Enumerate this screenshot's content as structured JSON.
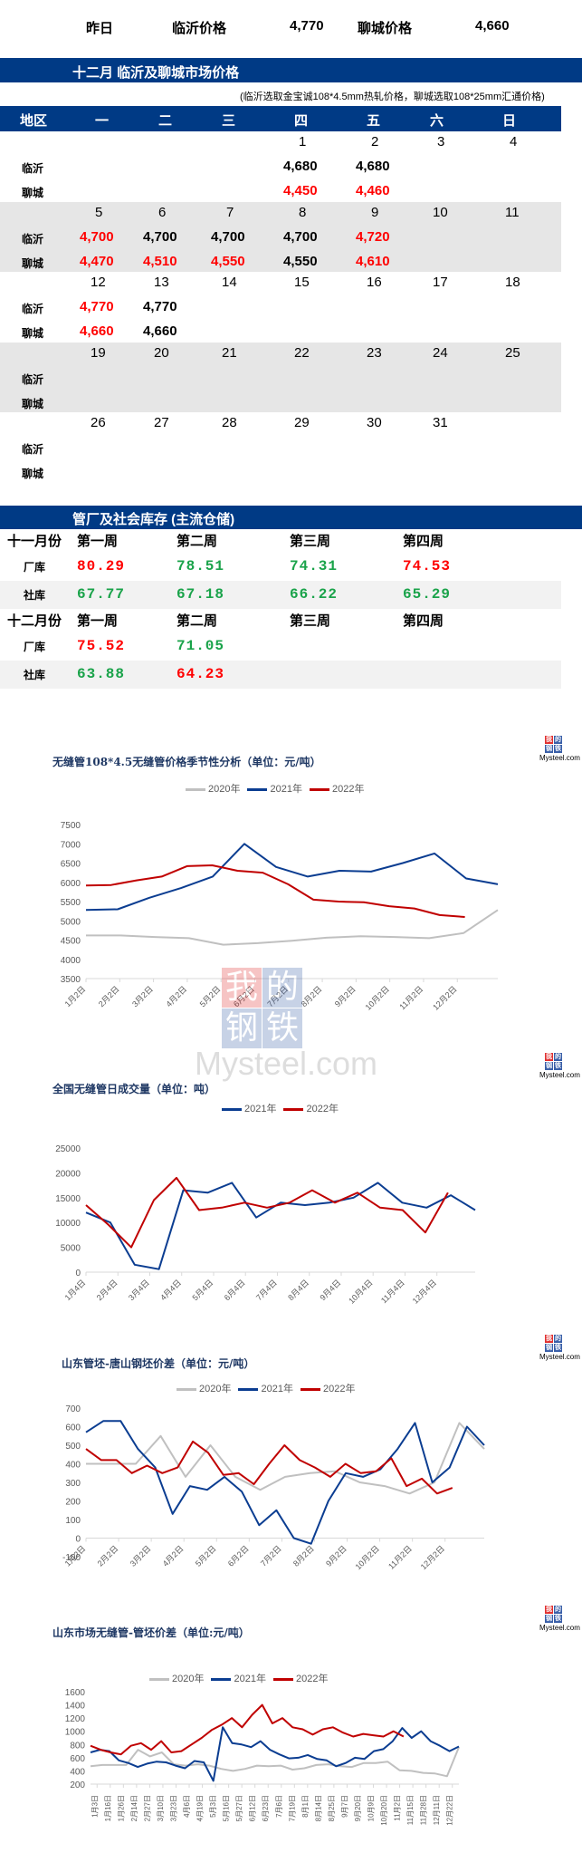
{
  "yesterday": {
    "label": "昨日",
    "linyi_label": "临沂价格",
    "linyi_value": "4,770",
    "liaocheng_label": "聊城价格",
    "liaocheng_value": "4,660"
  },
  "calendar": {
    "title": "十二月  临沂及聊城市场价格",
    "note": "(临沂选取金宝诚108*4.5mm热轧价格，聊城选取108*25mm汇通价格)",
    "headers": [
      "地区",
      "一",
      "二",
      "三",
      "四",
      "五",
      "六",
      "日"
    ],
    "row_labels": {
      "linyi": "临沂",
      "liaocheng": "聊城"
    },
    "weeks": [
      {
        "days": [
          "",
          "",
          "",
          "1",
          "2",
          "3",
          "4"
        ],
        "linyi": [
          null,
          null,
          null,
          {
            "v": "4,680",
            "c": "blk"
          },
          {
            "v": "4,680",
            "c": "blk"
          },
          null,
          null
        ],
        "liaocheng": [
          null,
          null,
          null,
          {
            "v": "4,450",
            "c": "red"
          },
          {
            "v": "4,460",
            "c": "red"
          },
          null,
          null
        ]
      },
      {
        "days": [
          "5",
          "6",
          "7",
          "8",
          "9",
          "10",
          "11"
        ],
        "linyi": [
          {
            "v": "4,700",
            "c": "red"
          },
          {
            "v": "4,700",
            "c": "blk"
          },
          {
            "v": "4,700",
            "c": "blk"
          },
          {
            "v": "4,700",
            "c": "blk"
          },
          {
            "v": "4,720",
            "c": "red"
          },
          null,
          null
        ],
        "liaocheng": [
          {
            "v": "4,470",
            "c": "red"
          },
          {
            "v": "4,510",
            "c": "red"
          },
          {
            "v": "4,550",
            "c": "red"
          },
          {
            "v": "4,550",
            "c": "blk"
          },
          {
            "v": "4,610",
            "c": "red"
          },
          null,
          null
        ]
      },
      {
        "days": [
          "12",
          "13",
          "14",
          "15",
          "16",
          "17",
          "18"
        ],
        "linyi": [
          {
            "v": "4,770",
            "c": "red"
          },
          {
            "v": "4,770",
            "c": "blk"
          },
          null,
          null,
          null,
          null,
          null
        ],
        "liaocheng": [
          {
            "v": "4,660",
            "c": "red"
          },
          {
            "v": "4,660",
            "c": "blk"
          },
          null,
          null,
          null,
          null,
          null
        ]
      },
      {
        "days": [
          "19",
          "20",
          "21",
          "22",
          "23",
          "24",
          "25"
        ],
        "linyi": [
          null,
          null,
          null,
          null,
          null,
          null,
          null
        ],
        "liaocheng": [
          null,
          null,
          null,
          null,
          null,
          null,
          null
        ]
      },
      {
        "days": [
          "26",
          "27",
          "28",
          "29",
          "30",
          "31",
          ""
        ],
        "linyi": [
          null,
          null,
          null,
          null,
          null,
          null,
          null
        ],
        "liaocheng": [
          null,
          null,
          null,
          null,
          null,
          null,
          null
        ]
      }
    ]
  },
  "inventory": {
    "title": "管厂及社会库存 (主流仓储)",
    "months": [
      {
        "label": "十一月份",
        "weeks": [
          "第一周",
          "第二周",
          "第三周",
          "第四周"
        ],
        "factory_label": "厂库",
        "factory": [
          {
            "v": "80.29",
            "c": "red"
          },
          {
            "v": "78.51",
            "c": "grn"
          },
          {
            "v": "74.31",
            "c": "grn"
          },
          {
            "v": "74.53",
            "c": "red"
          }
        ],
        "social_label": "社库",
        "social": [
          {
            "v": "67.77",
            "c": "grn"
          },
          {
            "v": "67.18",
            "c": "grn"
          },
          {
            "v": "66.22",
            "c": "grn"
          },
          {
            "v": "65.29",
            "c": "grn"
          }
        ]
      },
      {
        "label": "十二月份",
        "weeks": [
          "第一周",
          "第二周",
          "第三周",
          "第四周"
        ],
        "factory_label": "厂库",
        "factory": [
          {
            "v": "75.52",
            "c": "red"
          },
          {
            "v": "71.05",
            "c": "grn"
          },
          null,
          null
        ],
        "social_label": "社库",
        "social": [
          {
            "v": "63.88",
            "c": "grn"
          },
          {
            "v": "64.23",
            "c": "red"
          },
          null,
          null
        ]
      }
    ]
  },
  "logo": {
    "top_chars": [
      "我",
      "的"
    ],
    "bottom_chars": [
      "钢",
      "铁"
    ],
    "text": "Mysteel.com",
    "red": "#e03030",
    "blue": "#3a5fa8"
  },
  "colors": {
    "header_bar": "#003a85",
    "s2020": "#c0c0c0",
    "s2021": "#0b3d91",
    "s2022": "#c00000"
  },
  "chart_data": [
    {
      "type": "line",
      "title": "无缝管108*4.5无缝管价格季节性分析（单位：元/吨）",
      "legend": [
        "2020年",
        "2021年",
        "2022年"
      ],
      "xlabel": "",
      "ylabel": "",
      "ylim": [
        3500,
        7500
      ],
      "yticks": [
        3500,
        4000,
        4500,
        5000,
        5500,
        6000,
        6500,
        7000,
        7500
      ],
      "categories": [
        "1月2日",
        "2月2日",
        "3月2日",
        "4月2日",
        "5月2日",
        "6月2日",
        "7月2日",
        "8月2日",
        "9月2日",
        "10月2日",
        "11月2日",
        "12月2日"
      ],
      "series": [
        {
          "name": "2020年",
          "values": [
            4620,
            4620,
            4580,
            4550,
            4380,
            4420,
            4480,
            4560,
            4600,
            4580,
            4550,
            4680,
            5280
          ]
        },
        {
          "name": "2021年",
          "values": [
            5280,
            5300,
            5600,
            5850,
            6150,
            7000,
            6400,
            6150,
            6300,
            6280,
            6500,
            6750,
            6100,
            5950
          ]
        },
        {
          "name": "2022年",
          "values": [
            5920,
            5930,
            6050,
            6150,
            6420,
            6440,
            6300,
            6250,
            5950,
            5550,
            5500,
            5480,
            5380,
            5320,
            5150,
            5100
          ]
        }
      ]
    },
    {
      "type": "line",
      "title": "全国无缝管日成交量（单位：吨）",
      "legend": [
        "2021年",
        "2022年"
      ],
      "xlabel": "",
      "ylabel": "",
      "ylim": [
        0,
        25000
      ],
      "yticks": [
        0,
        5000,
        10000,
        15000,
        20000,
        25000
      ],
      "categories": [
        "1月4日",
        "2月4日",
        "3月4日",
        "4月4日",
        "5月4日",
        "6月4日",
        "7月4日",
        "8月4日",
        "9月4日",
        "10月4日",
        "11月4日",
        "12月4日"
      ],
      "series": [
        {
          "name": "2021年",
          "values": [
            12000,
            10000,
            1500,
            600,
            16500,
            16000,
            18000,
            11000,
            14000,
            13500,
            14000,
            15000,
            18000,
            14000,
            13000,
            15500,
            12500
          ]
        },
        {
          "name": "2022年",
          "values": [
            13500,
            9500,
            5000,
            14500,
            19000,
            12500,
            13000,
            14000,
            13000,
            14000,
            16500,
            14000,
            16000,
            13000,
            12500,
            8000,
            16000
          ]
        }
      ]
    },
    {
      "type": "line",
      "title": "山东管坯-唐山钢坯价差（单位：元/吨）",
      "legend": [
        "2020年",
        "2021年",
        "2022年"
      ],
      "xlabel": "",
      "ylabel": "",
      "ylim": [
        -100,
        700
      ],
      "yticks": [
        -100,
        0,
        100,
        200,
        300,
        400,
        500,
        600,
        700
      ],
      "categories": [
        "1月2日",
        "2月2日",
        "3月2日",
        "4月2日",
        "5月2日",
        "6月2日",
        "7月2日",
        "8月2日",
        "9月2日",
        "10月2日",
        "11月2日",
        "12月2日"
      ],
      "series": [
        {
          "name": "2020年",
          "values": [
            400,
            400,
            400,
            550,
            330,
            500,
            330,
            260,
            330,
            350,
            360,
            300,
            280,
            240,
            300,
            620,
            480
          ]
        },
        {
          "name": "2021年",
          "values": [
            570,
            630,
            630,
            480,
            380,
            130,
            280,
            260,
            330,
            250,
            70,
            150,
            0,
            -30,
            200,
            350,
            330,
            370,
            480,
            620,
            300,
            380,
            600,
            500
          ]
        },
        {
          "name": "2022年",
          "values": [
            480,
            420,
            420,
            350,
            390,
            350,
            380,
            520,
            460,
            340,
            350,
            290,
            400,
            500,
            420,
            380,
            330,
            400,
            350,
            360,
            430,
            280,
            320,
            240,
            270
          ]
        }
      ]
    },
    {
      "type": "line",
      "title": "山东市场无缝管-管坯价差（单位:元/吨）",
      "legend": [
        "2020年",
        "2021年",
        "2022年"
      ],
      "xlabel": "",
      "ylabel": "",
      "ylim": [
        200,
        1600
      ],
      "yticks": [
        200,
        400,
        600,
        800,
        1000,
        1200,
        1400,
        1600
      ],
      "categories": [
        "1月3日",
        "1月16日",
        "1月26日",
        "2月14日",
        "2月27日",
        "3月10日",
        "3月23日",
        "4月6日",
        "4月19日",
        "5月3日",
        "5月16日",
        "5月27日",
        "6月12日",
        "6月23日",
        "7月6日",
        "7月19日",
        "8月1日",
        "8月14日",
        "8月25日",
        "9月7日",
        "9月20日",
        "10月9日",
        "10月20日",
        "11月2日",
        "11月15日",
        "11月28日",
        "12月11日",
        "12月22日"
      ],
      "series": [
        {
          "name": "2020年",
          "values": [
            470,
            490,
            490,
            490,
            720,
            620,
            680,
            500,
            480,
            500,
            480,
            430,
            400,
            430,
            480,
            470,
            480,
            420,
            440,
            490,
            500,
            470,
            460,
            520,
            520,
            540,
            410,
            400,
            370,
            360,
            320,
            760
          ]
        },
        {
          "name": "2021年",
          "values": [
            680,
            720,
            700,
            560,
            520,
            460,
            510,
            540,
            530,
            480,
            440,
            550,
            530,
            250,
            1060,
            820,
            800,
            760,
            850,
            720,
            650,
            590,
            600,
            640,
            580,
            560,
            470,
            520,
            600,
            580,
            700,
            730,
            850,
            1050,
            900,
            1000,
            850,
            780,
            700,
            770
          ]
        },
        {
          "name": "2022年",
          "values": [
            780,
            720,
            680,
            650,
            780,
            820,
            720,
            850,
            680,
            700,
            800,
            900,
            1020,
            1100,
            1200,
            1060,
            1250,
            1400,
            1120,
            1200,
            1060,
            1030,
            950,
            1030,
            1060,
            980,
            920,
            960,
            940,
            920,
            1000,
            920
          ]
        }
      ]
    }
  ]
}
